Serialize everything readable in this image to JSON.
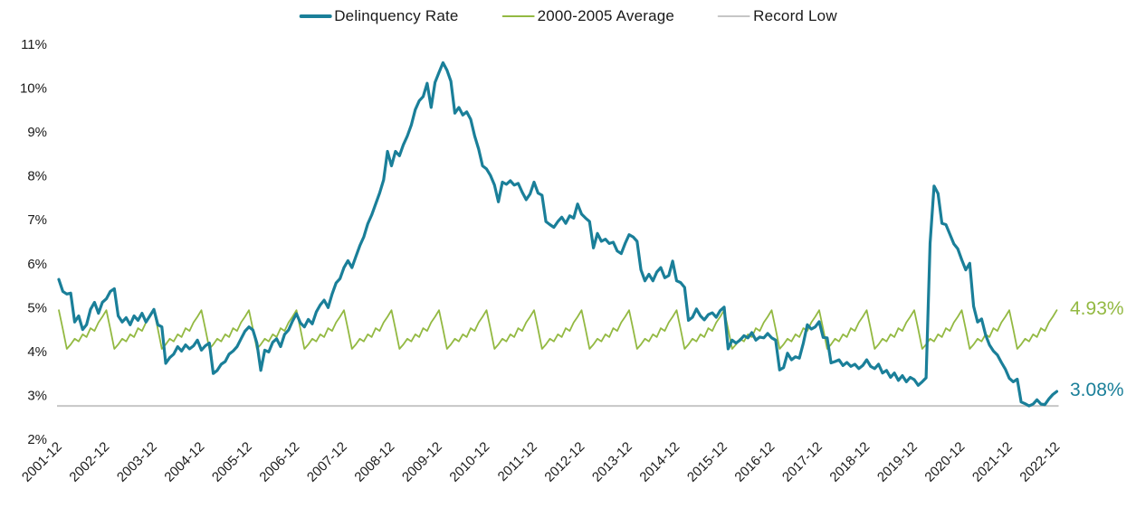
{
  "chart": {
    "legend": {
      "items": [
        {
          "label": "Delinquency Rate",
          "color": "#1a7f99",
          "swatch_thickness": 4
        },
        {
          "label": "2000-2005 Average",
          "color": "#93b942",
          "swatch_thickness": 2
        },
        {
          "label": "Record Low",
          "color": "#c6c6c6",
          "swatch_thickness": 2
        }
      ]
    },
    "annotations": [
      {
        "text": "4.93%",
        "value": 4.93,
        "color": "#93b942"
      },
      {
        "text": "3.08%",
        "value": 3.08,
        "color": "#1a7f99"
      }
    ]
  },
  "chart_data": {
    "type": "line",
    "title": "",
    "xlabel": "",
    "ylabel": "",
    "x_start": "2001-12",
    "x_interval": "monthly",
    "x_tick_labels": [
      "2001-12",
      "2002-12",
      "2003-12",
      "2004-12",
      "2005-12",
      "2006-12",
      "2007-12",
      "2008-12",
      "2009-12",
      "2010-12",
      "2011-12",
      "2012-12",
      "2013-12",
      "2014-12",
      "2015-12",
      "2016-12",
      "2017-12",
      "2018-12",
      "2019-12",
      "2020-12",
      "2021-12",
      "2022-12"
    ],
    "y_tick_labels": [
      "11%",
      "10%",
      "9%",
      "8%",
      "7%",
      "6%",
      "5%",
      "4%",
      "3%",
      "2%"
    ],
    "ylim": [
      2,
      11
    ],
    "grid": false,
    "legend_position": "top",
    "series": [
      {
        "name": "Delinquency Rate",
        "color": "#1a7f99",
        "width": 3.2,
        "values": [
          5.63,
          5.36,
          5.3,
          5.32,
          4.66,
          4.8,
          4.49,
          4.6,
          4.95,
          5.11,
          4.86,
          5.11,
          5.19,
          5.36,
          5.42,
          4.8,
          4.66,
          4.76,
          4.6,
          4.8,
          4.7,
          4.86,
          4.66,
          4.8,
          4.95,
          4.6,
          4.55,
          3.72,
          3.85,
          3.93,
          4.1,
          4.0,
          4.14,
          4.05,
          4.12,
          4.25,
          4.02,
          4.12,
          4.18,
          3.49,
          3.56,
          3.7,
          3.76,
          3.93,
          4.0,
          4.1,
          4.28,
          4.45,
          4.55,
          4.48,
          4.18,
          3.56,
          4.02,
          3.98,
          4.2,
          4.28,
          4.1,
          4.38,
          4.48,
          4.68,
          4.85,
          4.64,
          4.55,
          4.72,
          4.62,
          4.89,
          5.05,
          5.16,
          4.99,
          5.3,
          5.55,
          5.65,
          5.9,
          6.06,
          5.9,
          6.15,
          6.4,
          6.6,
          6.9,
          7.1,
          7.35,
          7.6,
          7.9,
          8.55,
          8.22,
          8.55,
          8.45,
          8.7,
          8.9,
          9.15,
          9.5,
          9.7,
          9.8,
          10.1,
          9.55,
          10.12,
          10.35,
          10.57,
          10.4,
          10.15,
          9.42,
          9.55,
          9.38,
          9.45,
          9.28,
          8.9,
          8.6,
          8.22,
          8.15,
          8.0,
          7.78,
          7.4,
          7.85,
          7.8,
          7.88,
          7.78,
          7.82,
          7.62,
          7.45,
          7.58,
          7.85,
          7.6,
          7.55,
          6.95,
          6.88,
          6.82,
          6.95,
          7.05,
          6.91,
          7.08,
          7.03,
          7.35,
          7.12,
          7.03,
          6.95,
          6.35,
          6.68,
          6.5,
          6.55,
          6.45,
          6.48,
          6.28,
          6.22,
          6.45,
          6.65,
          6.6,
          6.5,
          5.85,
          5.6,
          5.75,
          5.6,
          5.8,
          5.9,
          5.67,
          5.72,
          6.05,
          5.6,
          5.56,
          5.45,
          4.7,
          4.77,
          4.96,
          4.8,
          4.71,
          4.83,
          4.87,
          4.77,
          4.92,
          5.0,
          4.05,
          4.25,
          4.18,
          4.25,
          4.35,
          4.3,
          4.42,
          4.25,
          4.32,
          4.3,
          4.4,
          4.3,
          4.25,
          3.57,
          3.62,
          3.95,
          3.8,
          3.87,
          3.84,
          4.18,
          4.6,
          4.5,
          4.55,
          4.67,
          4.31,
          4.3,
          3.73,
          3.76,
          3.8,
          3.67,
          3.74,
          3.65,
          3.7,
          3.6,
          3.67,
          3.8,
          3.65,
          3.6,
          3.7,
          3.5,
          3.56,
          3.4,
          3.5,
          3.33,
          3.44,
          3.3,
          3.4,
          3.35,
          3.22,
          3.3,
          3.39,
          6.45,
          7.76,
          7.59,
          6.91,
          6.88,
          6.66,
          6.44,
          6.33,
          6.08,
          5.85,
          6.0,
          5.02,
          4.66,
          4.73,
          4.37,
          4.14,
          4.0,
          3.91,
          3.74,
          3.59,
          3.38,
          3.3,
          3.36,
          2.84,
          2.8,
          2.75,
          2.79,
          2.89,
          2.79,
          2.78,
          2.91,
          3.01,
          3.08
        ],
        "end_value_label": "3.08%"
      },
      {
        "name": "2000-2005 Average",
        "color": "#93b942",
        "width": 1.8,
        "seasonal_pattern_jan_to_dec": [
          4.5,
          4.05,
          4.15,
          4.28,
          4.22,
          4.38,
          4.32,
          4.52,
          4.46,
          4.65,
          4.78,
          4.93
        ],
        "pattern_repeats_annually": true,
        "end_value_label": "4.93%"
      },
      {
        "name": "Record Low",
        "color": "#c6c6c6",
        "width": 2,
        "constant_value": 2.75
      }
    ]
  }
}
